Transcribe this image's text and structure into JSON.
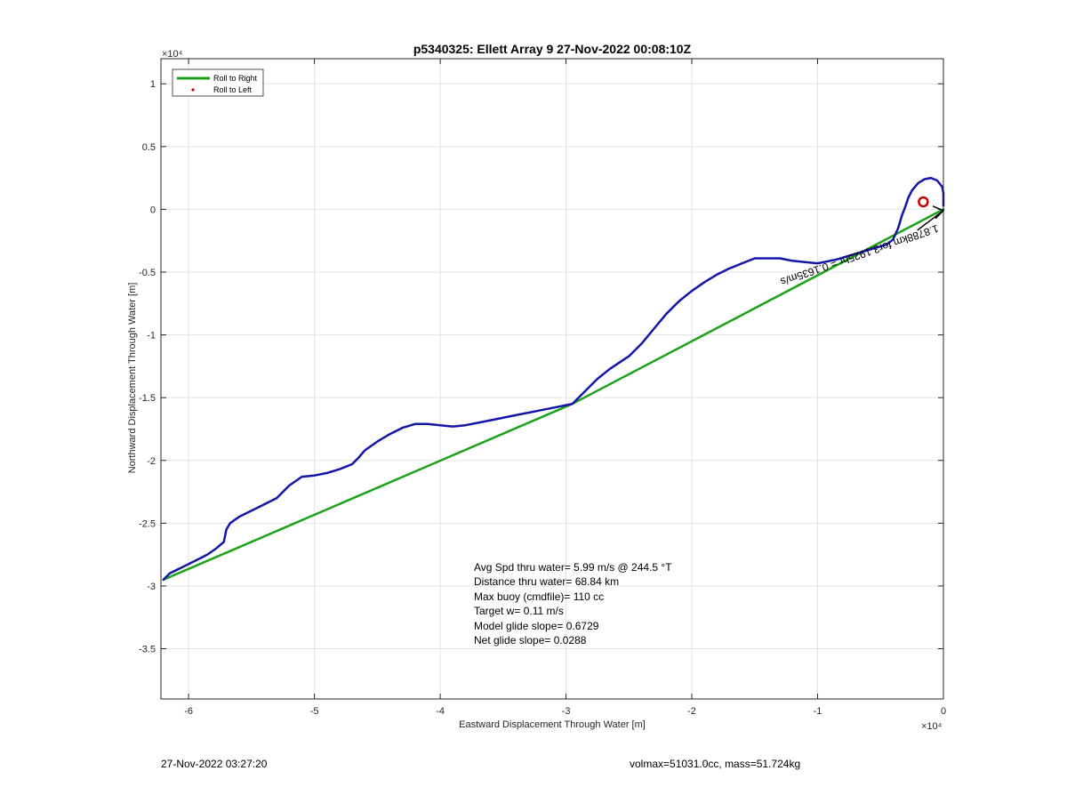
{
  "chart_data": {
    "type": "line",
    "title": "p5340325: Ellett Array 9 27-Nov-2022 00:08:10Z",
    "xlabel": "Eastward Displacement Through Water [m]",
    "ylabel": "Northward Displacement Through Water [m]",
    "x_exponent_label": "×10⁴",
    "y_exponent_label": "×10⁴",
    "xlim": [
      -62200,
      0
    ],
    "ylim": [
      -39000,
      12000
    ],
    "x_ticks": [
      -60000,
      -50000,
      -40000,
      -30000,
      -20000,
      -10000,
      0
    ],
    "x_tick_labels": [
      "-6",
      "-5",
      "-4",
      "-3",
      "-2",
      "-1",
      "0"
    ],
    "y_ticks": [
      10000,
      5000,
      0,
      -5000,
      -10000,
      -15000,
      -20000,
      -25000,
      -30000,
      -35000
    ],
    "y_tick_labels": [
      "1",
      "0.5",
      "0",
      "-0.5",
      "-1",
      "-1.5",
      "-2",
      "-2.5",
      "-3",
      "-3.5"
    ],
    "grid": true,
    "legend_placement": "top-left",
    "legend": [
      {
        "label": "Roll to Right",
        "color": "#1aa31a",
        "style": "line"
      },
      {
        "label": "Roll to Left",
        "color": "#cc0000",
        "style": "dot"
      }
    ],
    "series": [
      {
        "name": "Roll to Right",
        "color": "#1aa31a",
        "x": [
          -62000,
          -29500,
          0
        ],
        "y": [
          -29500,
          -15500,
          0
        ]
      },
      {
        "color": "#1414a8",
        "x": [
          -62000,
          -61500,
          -60500,
          -59500,
          -58500,
          -57800,
          -57200,
          -57000,
          -56700,
          -56000,
          -55000,
          -54000,
          -53000,
          -52000,
          -51000,
          -50000,
          -49000,
          -48000,
          -47000,
          -46500,
          -46000,
          -45000,
          -44000,
          -43000,
          -42000,
          -41000,
          -40000,
          -39000,
          -38000,
          -36000,
          -34000,
          -32000,
          -30000,
          -29500,
          -28500,
          -27500,
          -26500,
          -25000,
          -24000,
          -23000,
          -22000,
          -21000,
          -20000,
          -19000,
          -18000,
          -17000,
          -16000,
          -15000,
          -14000,
          -13000,
          -12000,
          -11000,
          -10000,
          -9500,
          -8500,
          -7500,
          -6500,
          -5500,
          -4500,
          -4000,
          -3600,
          -3300,
          -3000,
          -2800,
          -2500,
          -2000,
          -1500,
          -1000,
          -500,
          -100,
          0,
          0
        ],
        "y": [
          -29500,
          -29000,
          -28500,
          -28000,
          -27500,
          -27000,
          -26500,
          -25500,
          -25000,
          -24500,
          -24000,
          -23500,
          -23000,
          -22000,
          -21300,
          -21200,
          -21000,
          -20700,
          -20300,
          -19800,
          -19200,
          -18500,
          -17900,
          -17400,
          -17100,
          -17100,
          -17200,
          -17300,
          -17200,
          -16800,
          -16400,
          -16000,
          -15600,
          -15500,
          -14500,
          -13500,
          -12700,
          -11700,
          -10700,
          -9500,
          -8300,
          -7300,
          -6500,
          -5800,
          -5200,
          -4700,
          -4300,
          -3900,
          -3900,
          -3900,
          -4100,
          -4200,
          -4300,
          -4200,
          -4000,
          -3700,
          -3400,
          -3100,
          -2800,
          -2400,
          -1500,
          -500,
          300,
          900,
          1500,
          2100,
          2400,
          2500,
          2300,
          1800,
          1300,
          300
        ]
      }
    ],
    "markers": [
      {
        "x": -1600,
        "y": 600,
        "color": "#cc0000",
        "shape": "circle"
      }
    ],
    "annotation_arrow": {
      "from_x": -800,
      "from_y": -1100,
      "to_x": 0,
      "to_y": -100
    },
    "annotation_text": "1.8788km for3.1925hr = 0.1635m/s",
    "annotation_text_anchor": {
      "x": -13200,
      "y": -5600
    },
    "annotation_text_angle": 19,
    "stats": [
      "Avg Spd thru water=  5.99 m/s @ 244.5 °T",
      "Distance thru water= 68.84 km",
      "Max buoy (cmdfile)= 110 cc",
      "Target w= 0.11 m/s",
      "Model glide slope= 0.6729",
      "Net glide slope= 0.0288"
    ]
  },
  "footer": {
    "timestamp": "27-Nov-2022 03:27:20",
    "info": "volmax=51031.0cc, mass=51.724kg"
  }
}
